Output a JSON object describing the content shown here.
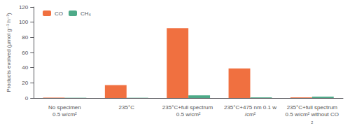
{
  "chart_data": {
    "type": "bar",
    "ylabel": "Products evolved (μmol g⁻¹ h⁻¹)",
    "categories": [
      "No specimen\n0.5 w/cm²",
      "235°C",
      "235°C+full spectrum 0.5 w/cm²",
      "235°C+475 nm 0.1 w/cm²",
      "235°C+full spectrum\n0.5 w/cm² without CO₂"
    ],
    "series": [
      {
        "name": "CO",
        "color": "#f07040",
        "values": [
          0.5,
          17,
          92,
          39,
          0.8
        ]
      },
      {
        "name": "CH₄",
        "color": "#4daa88",
        "values": [
          0.3,
          0.3,
          3.5,
          0.8,
          1.8
        ]
      }
    ],
    "ylim": [
      0,
      120
    ],
    "yticks": [
      0,
      20,
      40,
      60,
      80,
      100,
      120
    ],
    "grid": false,
    "legend": "upper left"
  }
}
